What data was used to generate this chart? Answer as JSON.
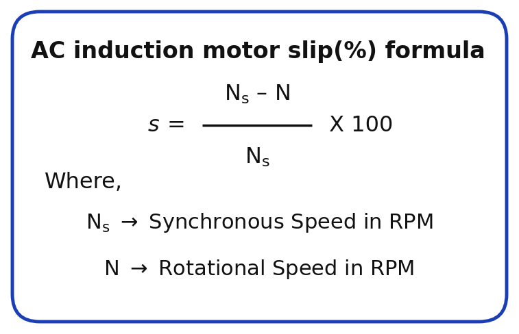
{
  "title": "AC induction motor slip(%) formula",
  "bg_color": "#ffffff",
  "border_color": "#1a3eb5",
  "border_linewidth": 3.5,
  "text_color": "#111111",
  "title_fontsize": 24,
  "formula_fontsize": 23,
  "where_fontsize": 23,
  "def_fontsize": 22,
  "fig_width": 7.57,
  "fig_height": 4.89,
  "dpi": 100
}
